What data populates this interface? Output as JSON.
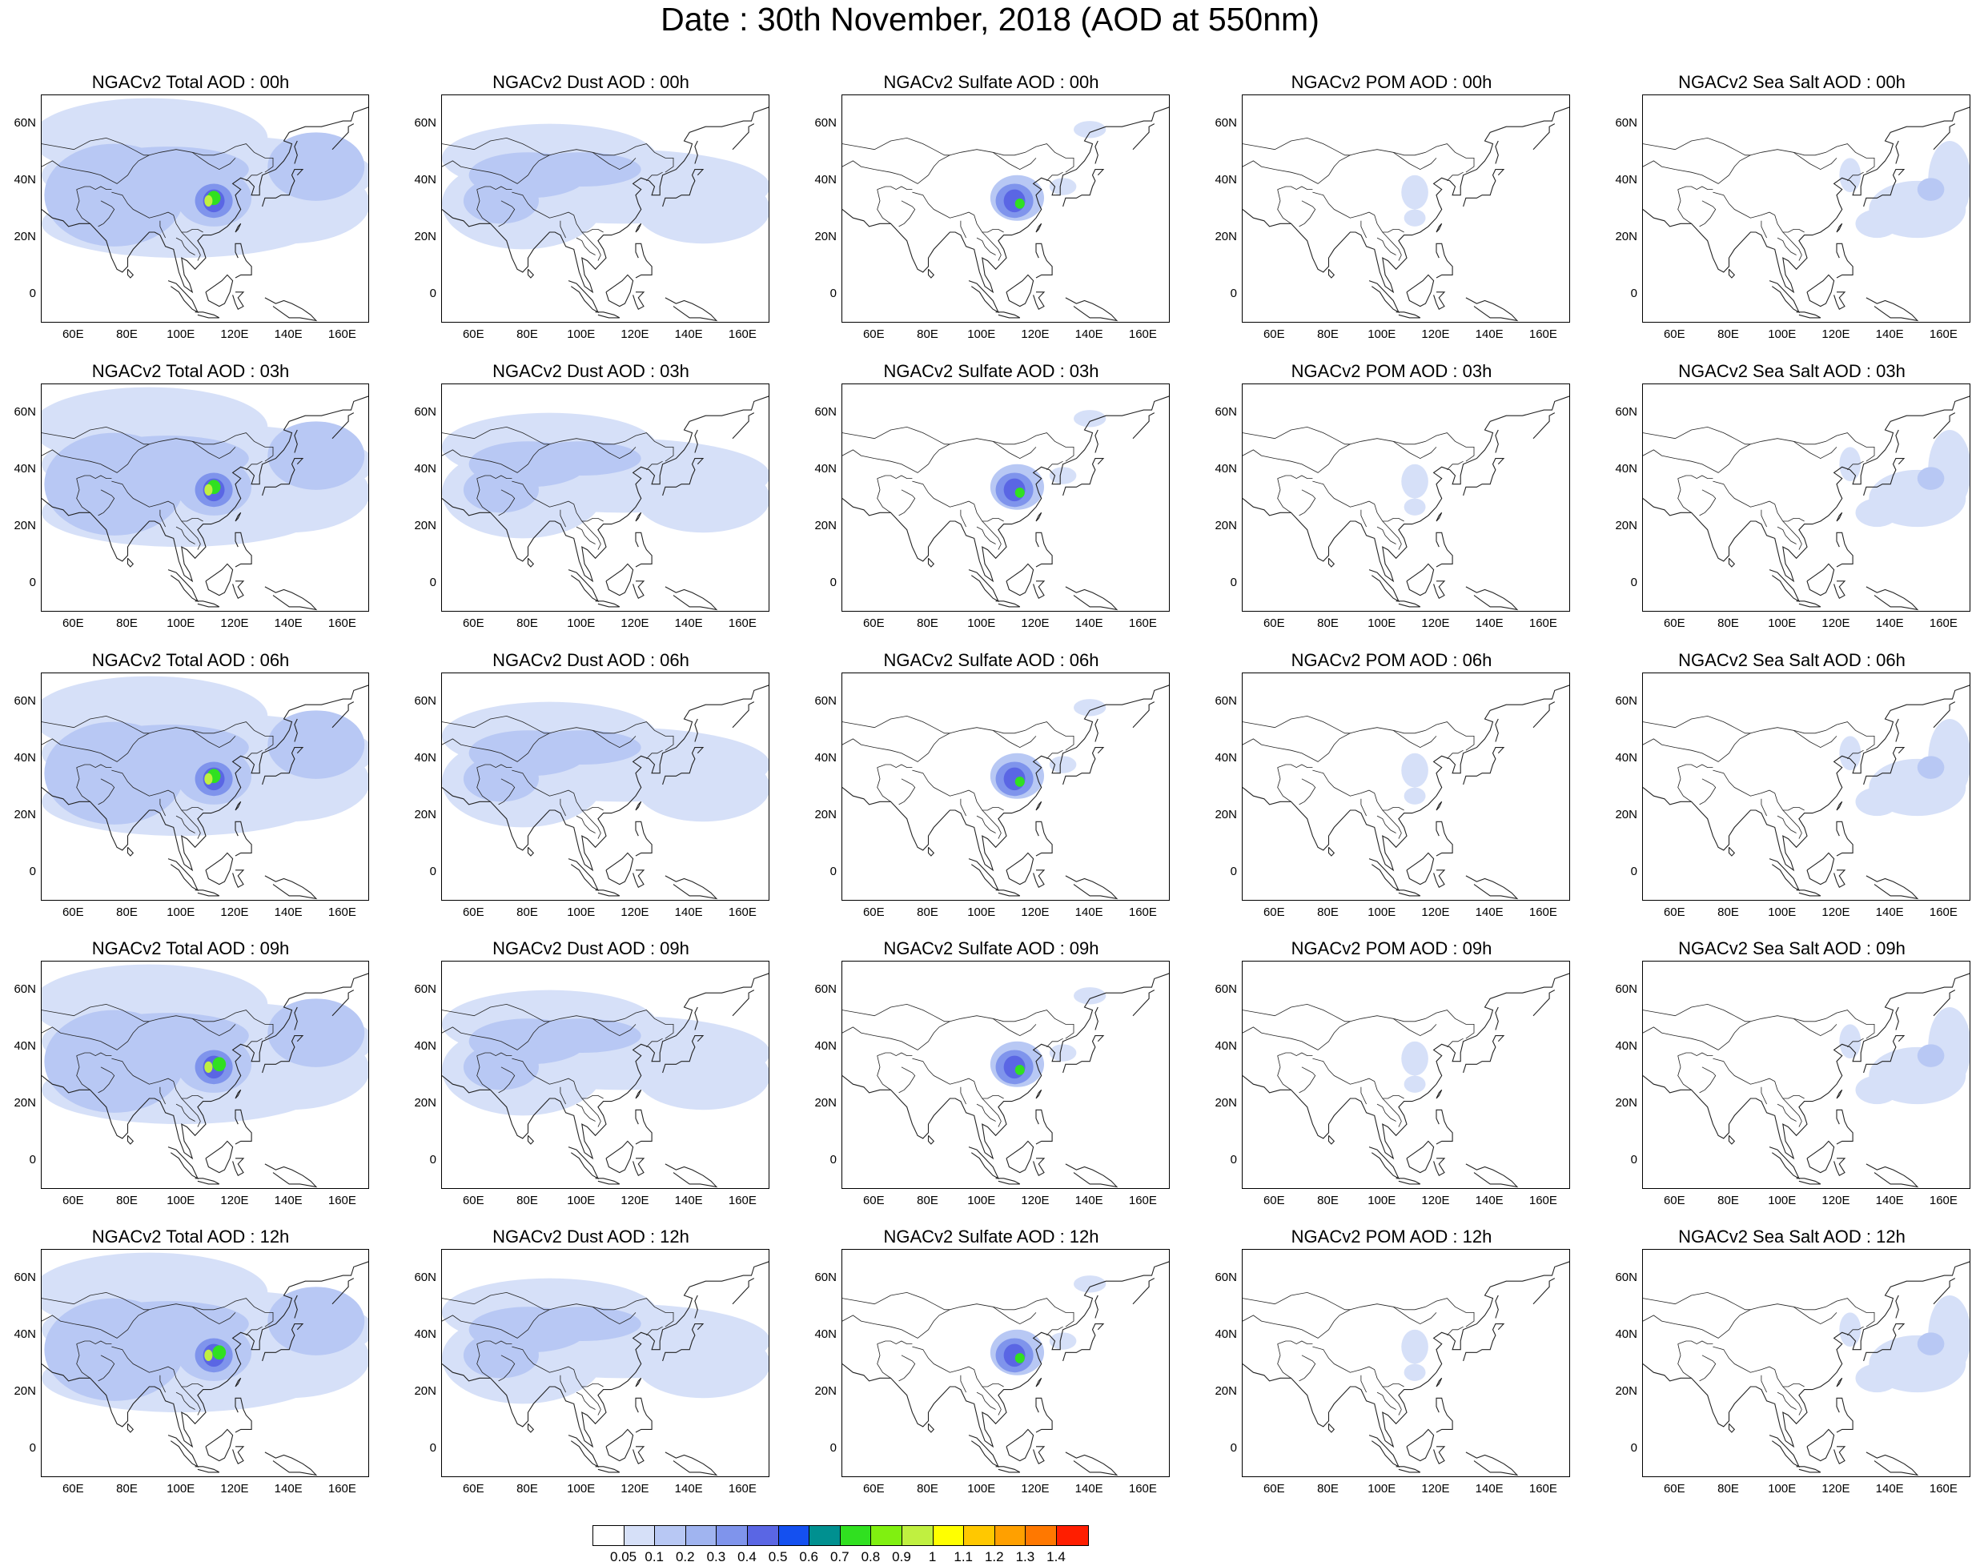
{
  "title": "Date : 30th November, 2018 (AOD at 550nm)",
  "x_ticks": [
    "60E",
    "80E",
    "100E",
    "120E",
    "140E",
    "160E"
  ],
  "y_ticks": [
    "60N",
    "40N",
    "20N",
    "0"
  ],
  "rows": [
    [
      "NGACv2 Total AOD : 00h",
      "NGACv2 Dust AOD : 00h",
      "NGACv2 Sulfate AOD : 00h",
      "NGACv2 POM AOD : 00h",
      "NGACv2 Sea Salt AOD : 00h"
    ],
    [
      "NGACv2 Total AOD : 03h",
      "NGACv2 Dust AOD : 03h",
      "NGACv2 Sulfate AOD : 03h",
      "NGACv2 POM AOD : 03h",
      "NGACv2 Sea Salt AOD : 03h"
    ],
    [
      "NGACv2 Total AOD : 06h",
      "NGACv2 Dust AOD : 06h",
      "NGACv2 Sulfate AOD : 06h",
      "NGACv2 POM AOD : 06h",
      "NGACv2 Sea Salt AOD : 06h"
    ],
    [
      "NGACv2 Total AOD : 09h",
      "NGACv2 Dust AOD : 09h",
      "NGACv2 Sulfate AOD : 09h",
      "NGACv2 POM AOD : 09h",
      "NGACv2 Sea Salt  AOD : 09h"
    ],
    [
      "NGACv2 Total AOD  : 12h",
      "NGACv2 Dust AOD : 12h",
      "NGACv2 Sulfate AOD : 12h",
      "NGACv2 POM  AOD : 12h",
      "NGACv2 Sea Salt  AOD : 12h"
    ]
  ],
  "colorbar": {
    "labels": [
      "0.05",
      "0.1",
      "0.2",
      "0.3",
      "0.4",
      "0.5",
      "0.6",
      "0.7",
      "0.8",
      "0.9",
      "1",
      "1.1",
      "1.2",
      "1.3",
      "1.4"
    ],
    "colors": [
      "#ffffff",
      "#d6e0f8",
      "#b8c8f4",
      "#a0b4f0",
      "#7f94ec",
      "#5a66e4",
      "#1450f0",
      "#009090",
      "#30e020",
      "#80f010",
      "#c0f040",
      "#ffff00",
      "#ffc800",
      "#ffa000",
      "#ff7800",
      "#ff1e00"
    ]
  }
}
